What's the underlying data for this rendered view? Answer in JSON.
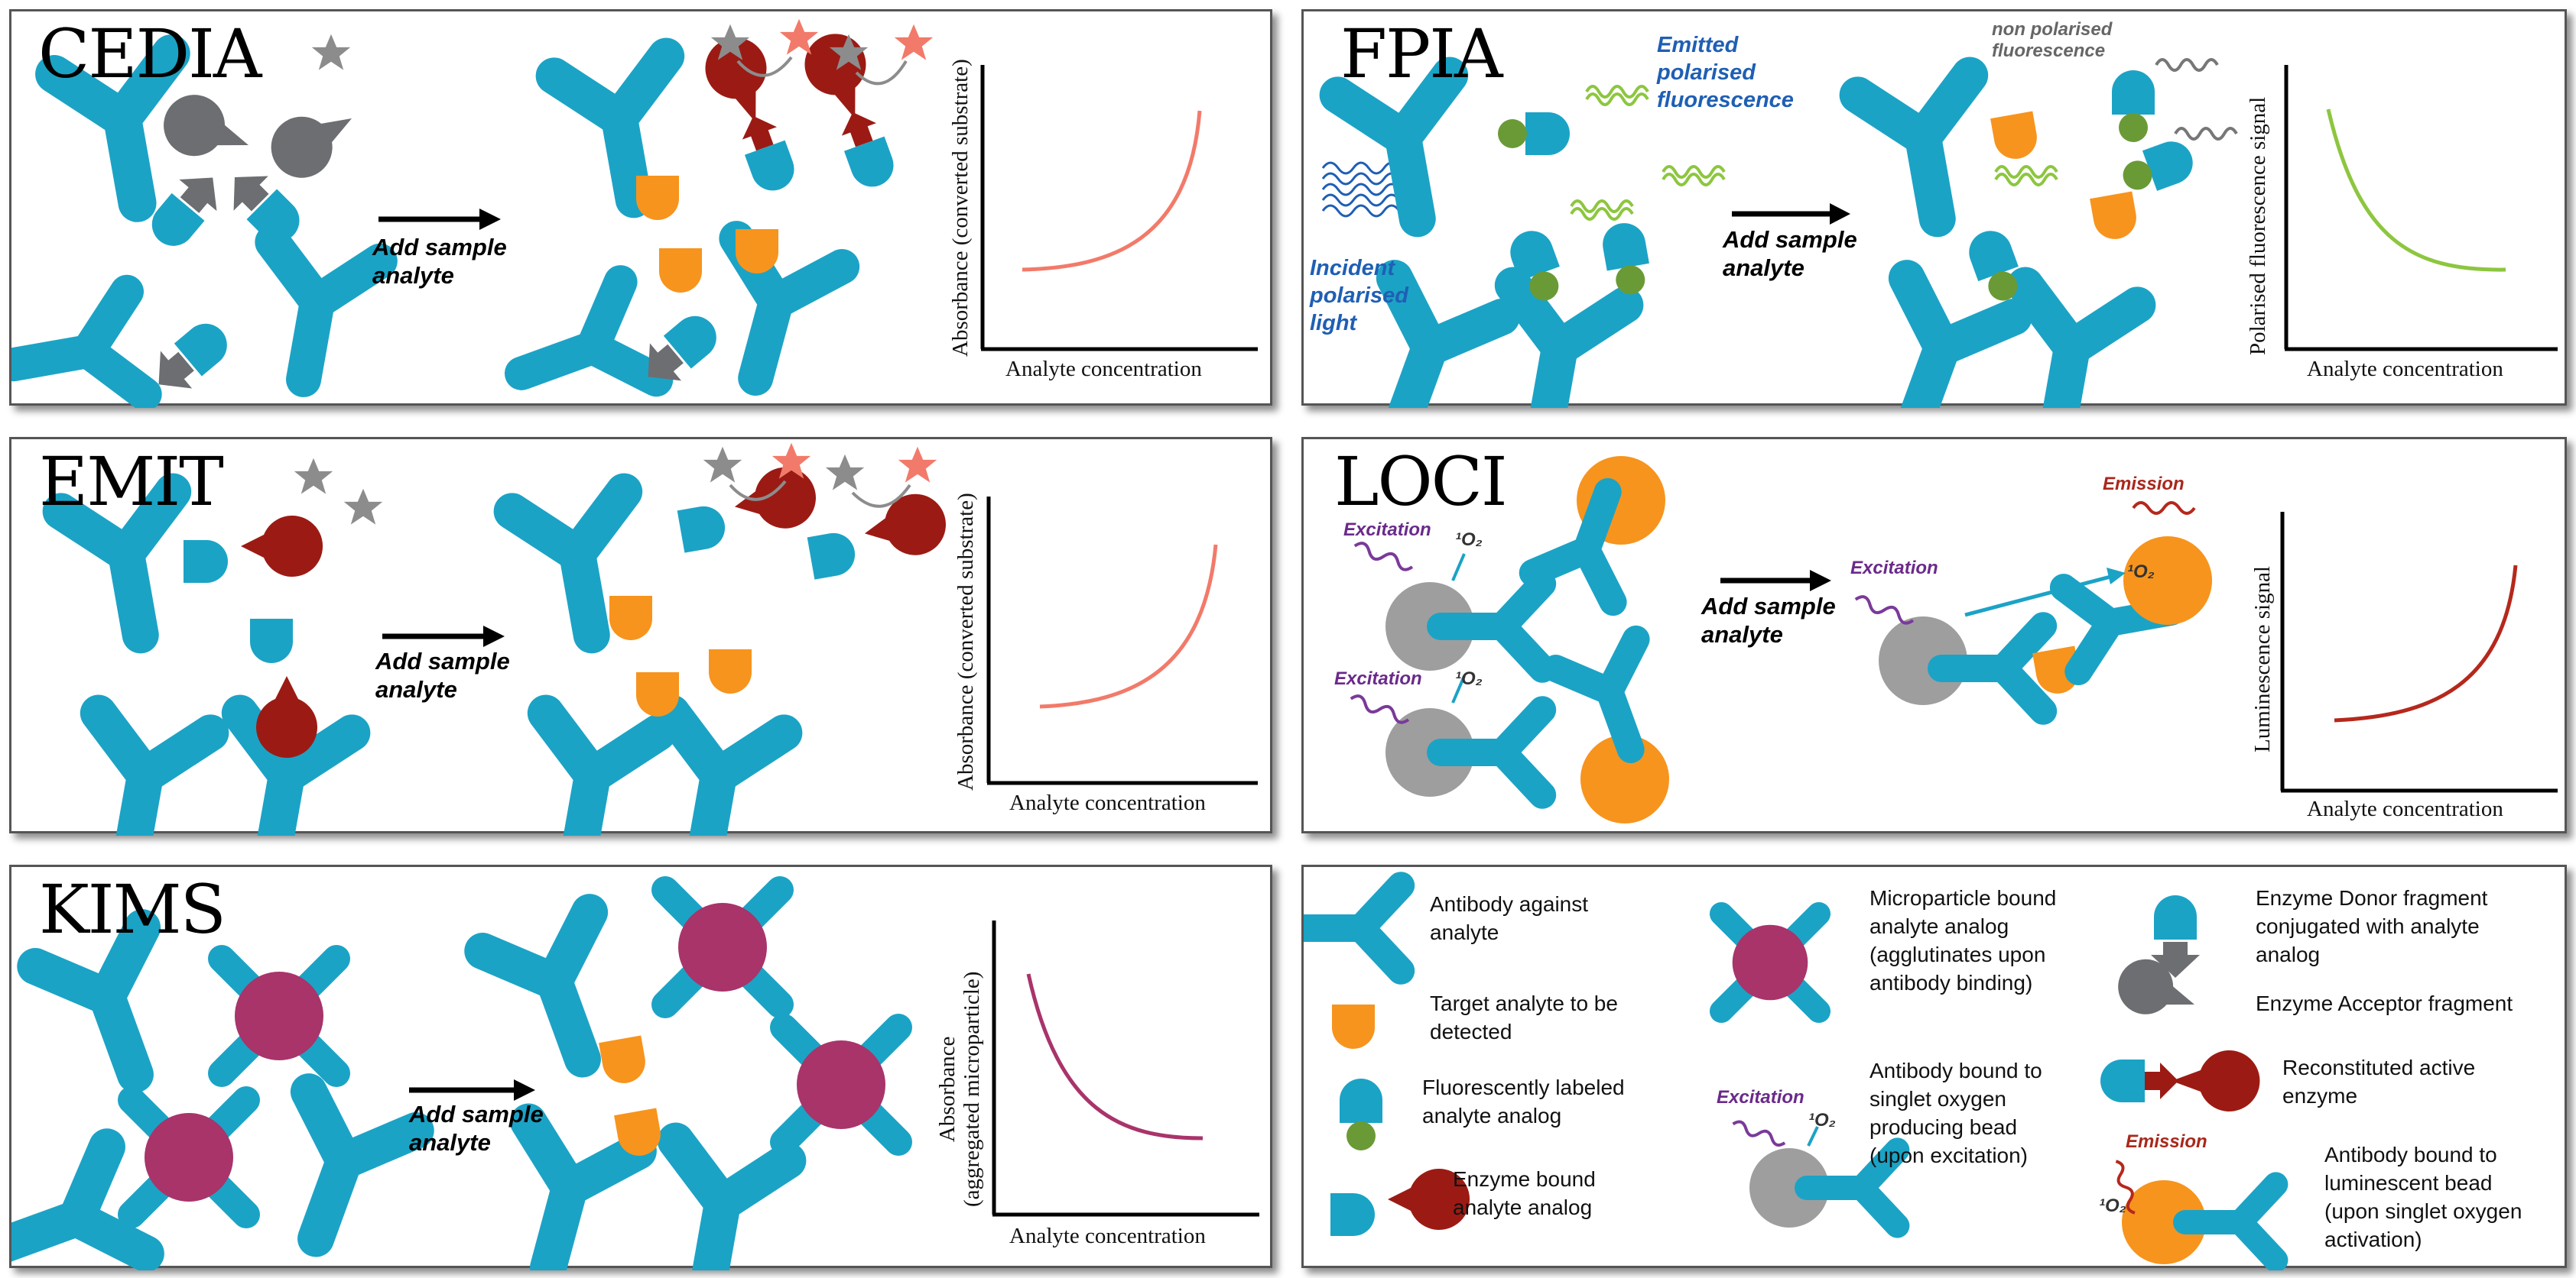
{
  "panels": {
    "cedia": {
      "title": "CEDIA",
      "step": [
        "Add sample",
        "analyte"
      ],
      "xlabel": "Analyte concentration",
      "ylabel": "Absorbance (converted substrate)"
    },
    "fpia": {
      "title": "FPIA",
      "step": [
        "Add sample",
        "analyte"
      ],
      "xlabel": "Analyte concentration",
      "ylabel": "Polarised fluorescence signal",
      "emitted": [
        "Emitted",
        "polarised",
        "fluorescence"
      ],
      "incident": [
        "Incident",
        "polarised",
        "light"
      ],
      "nonpol": [
        "non polarised",
        "fluorescence"
      ]
    },
    "emit": {
      "title": "EMIT",
      "step": [
        "Add sample",
        "analyte"
      ],
      "xlabel": "Analyte concentration",
      "ylabel": "Absorbance (converted substrate)"
    },
    "loci": {
      "title": "LOCI",
      "step": [
        "Add sample",
        "analyte"
      ],
      "xlabel": "Analyte concentration",
      "ylabel": "Luminescence signal",
      "excitation": "Excitation",
      "emission": "Emission",
      "singlet": "¹O₂"
    },
    "kims": {
      "title": "KIMS",
      "step": [
        "Add sample",
        "analyte"
      ],
      "xlabel": "Analyte concentration",
      "ylabel": [
        "Absorbance",
        "(aggregated microparticle)"
      ]
    }
  },
  "legend": {
    "items": [
      [
        "Antibody against",
        "analyte"
      ],
      [
        "Target analyte to be",
        "detected"
      ],
      [
        "Fluorescently labeled",
        "analyte analog"
      ],
      [
        "Enzyme bound",
        "analyte analog"
      ],
      [
        "Microparticle bound",
        "analyte analog",
        "(agglutinates upon",
        "antibody binding)"
      ],
      [
        "Antibody bound to",
        "singlet oxygen",
        "producing bead",
        "(upon excitation)"
      ],
      [
        "Antibody bound to",
        "luminescent bead",
        "(upon singlet oxygen",
        "activation)"
      ],
      [
        "Enzyme Donor fragment",
        "conjugated with analyte",
        "analog"
      ],
      [
        "Enzyme Acceptor fragment"
      ],
      [
        "Reconstituted active",
        "enzyme"
      ]
    ],
    "excitation": "Excitation",
    "emission": "Emission",
    "singlet": "¹O₂"
  },
  "chart_data": [
    {
      "type": "line",
      "title": "CEDIA",
      "xlabel": "Analyte concentration",
      "ylabel": "Absorbance (converted substrate)",
      "series": [
        {
          "x": [
            0,
            0.2,
            0.4,
            0.6,
            0.8,
            1.0
          ],
          "y": [
            0.05,
            0.08,
            0.14,
            0.26,
            0.5,
            1.0
          ]
        }
      ],
      "shape": "increasing"
    },
    {
      "type": "line",
      "title": "FPIA",
      "xlabel": "Analyte concentration",
      "ylabel": "Polarised fluorescence signal",
      "series": [
        {
          "x": [
            0,
            0.2,
            0.4,
            0.6,
            0.8,
            1.0
          ],
          "y": [
            1.0,
            0.45,
            0.2,
            0.09,
            0.04,
            0.03
          ]
        }
      ],
      "shape": "decreasing"
    },
    {
      "type": "line",
      "title": "EMIT",
      "xlabel": "Analyte concentration",
      "ylabel": "Absorbance (converted substrate)",
      "series": [
        {
          "x": [
            0,
            0.2,
            0.4,
            0.6,
            0.8,
            1.0
          ],
          "y": [
            0.05,
            0.08,
            0.14,
            0.26,
            0.5,
            1.0
          ]
        }
      ],
      "shape": "increasing"
    },
    {
      "type": "line",
      "title": "LOCI",
      "xlabel": "Analyte concentration",
      "ylabel": "Luminescence signal",
      "series": [
        {
          "x": [
            0,
            0.2,
            0.4,
            0.6,
            0.8,
            1.0
          ],
          "y": [
            0.02,
            0.04,
            0.09,
            0.2,
            0.45,
            1.0
          ]
        }
      ],
      "shape": "increasing"
    },
    {
      "type": "line",
      "title": "KIMS",
      "xlabel": "Analyte concentration",
      "ylabel": "Absorbance (aggregated microparticle)",
      "series": [
        {
          "x": [
            0,
            0.2,
            0.4,
            0.6,
            0.8,
            1.0
          ],
          "y": [
            1.0,
            0.45,
            0.2,
            0.09,
            0.04,
            0.03
          ]
        }
      ],
      "shape": "decreasing"
    }
  ],
  "colors": {
    "antibody": "#1ba3c6",
    "analyte": "#f7941d",
    "fluor": "#6a9a36",
    "enzyme": "#9b1b14",
    "acceptor": "#6d6e71",
    "star_grey": "#8c8c8c",
    "star_red": "#f27a6a",
    "bead": "#9e9e9e",
    "lum": "#f7941d",
    "micro": "#a8346a",
    "curve_cedia": "#f27a6a",
    "curve_fpia": "#8dc63f",
    "curve_loci": "#b5281c",
    "curve_kims": "#a8346a"
  }
}
